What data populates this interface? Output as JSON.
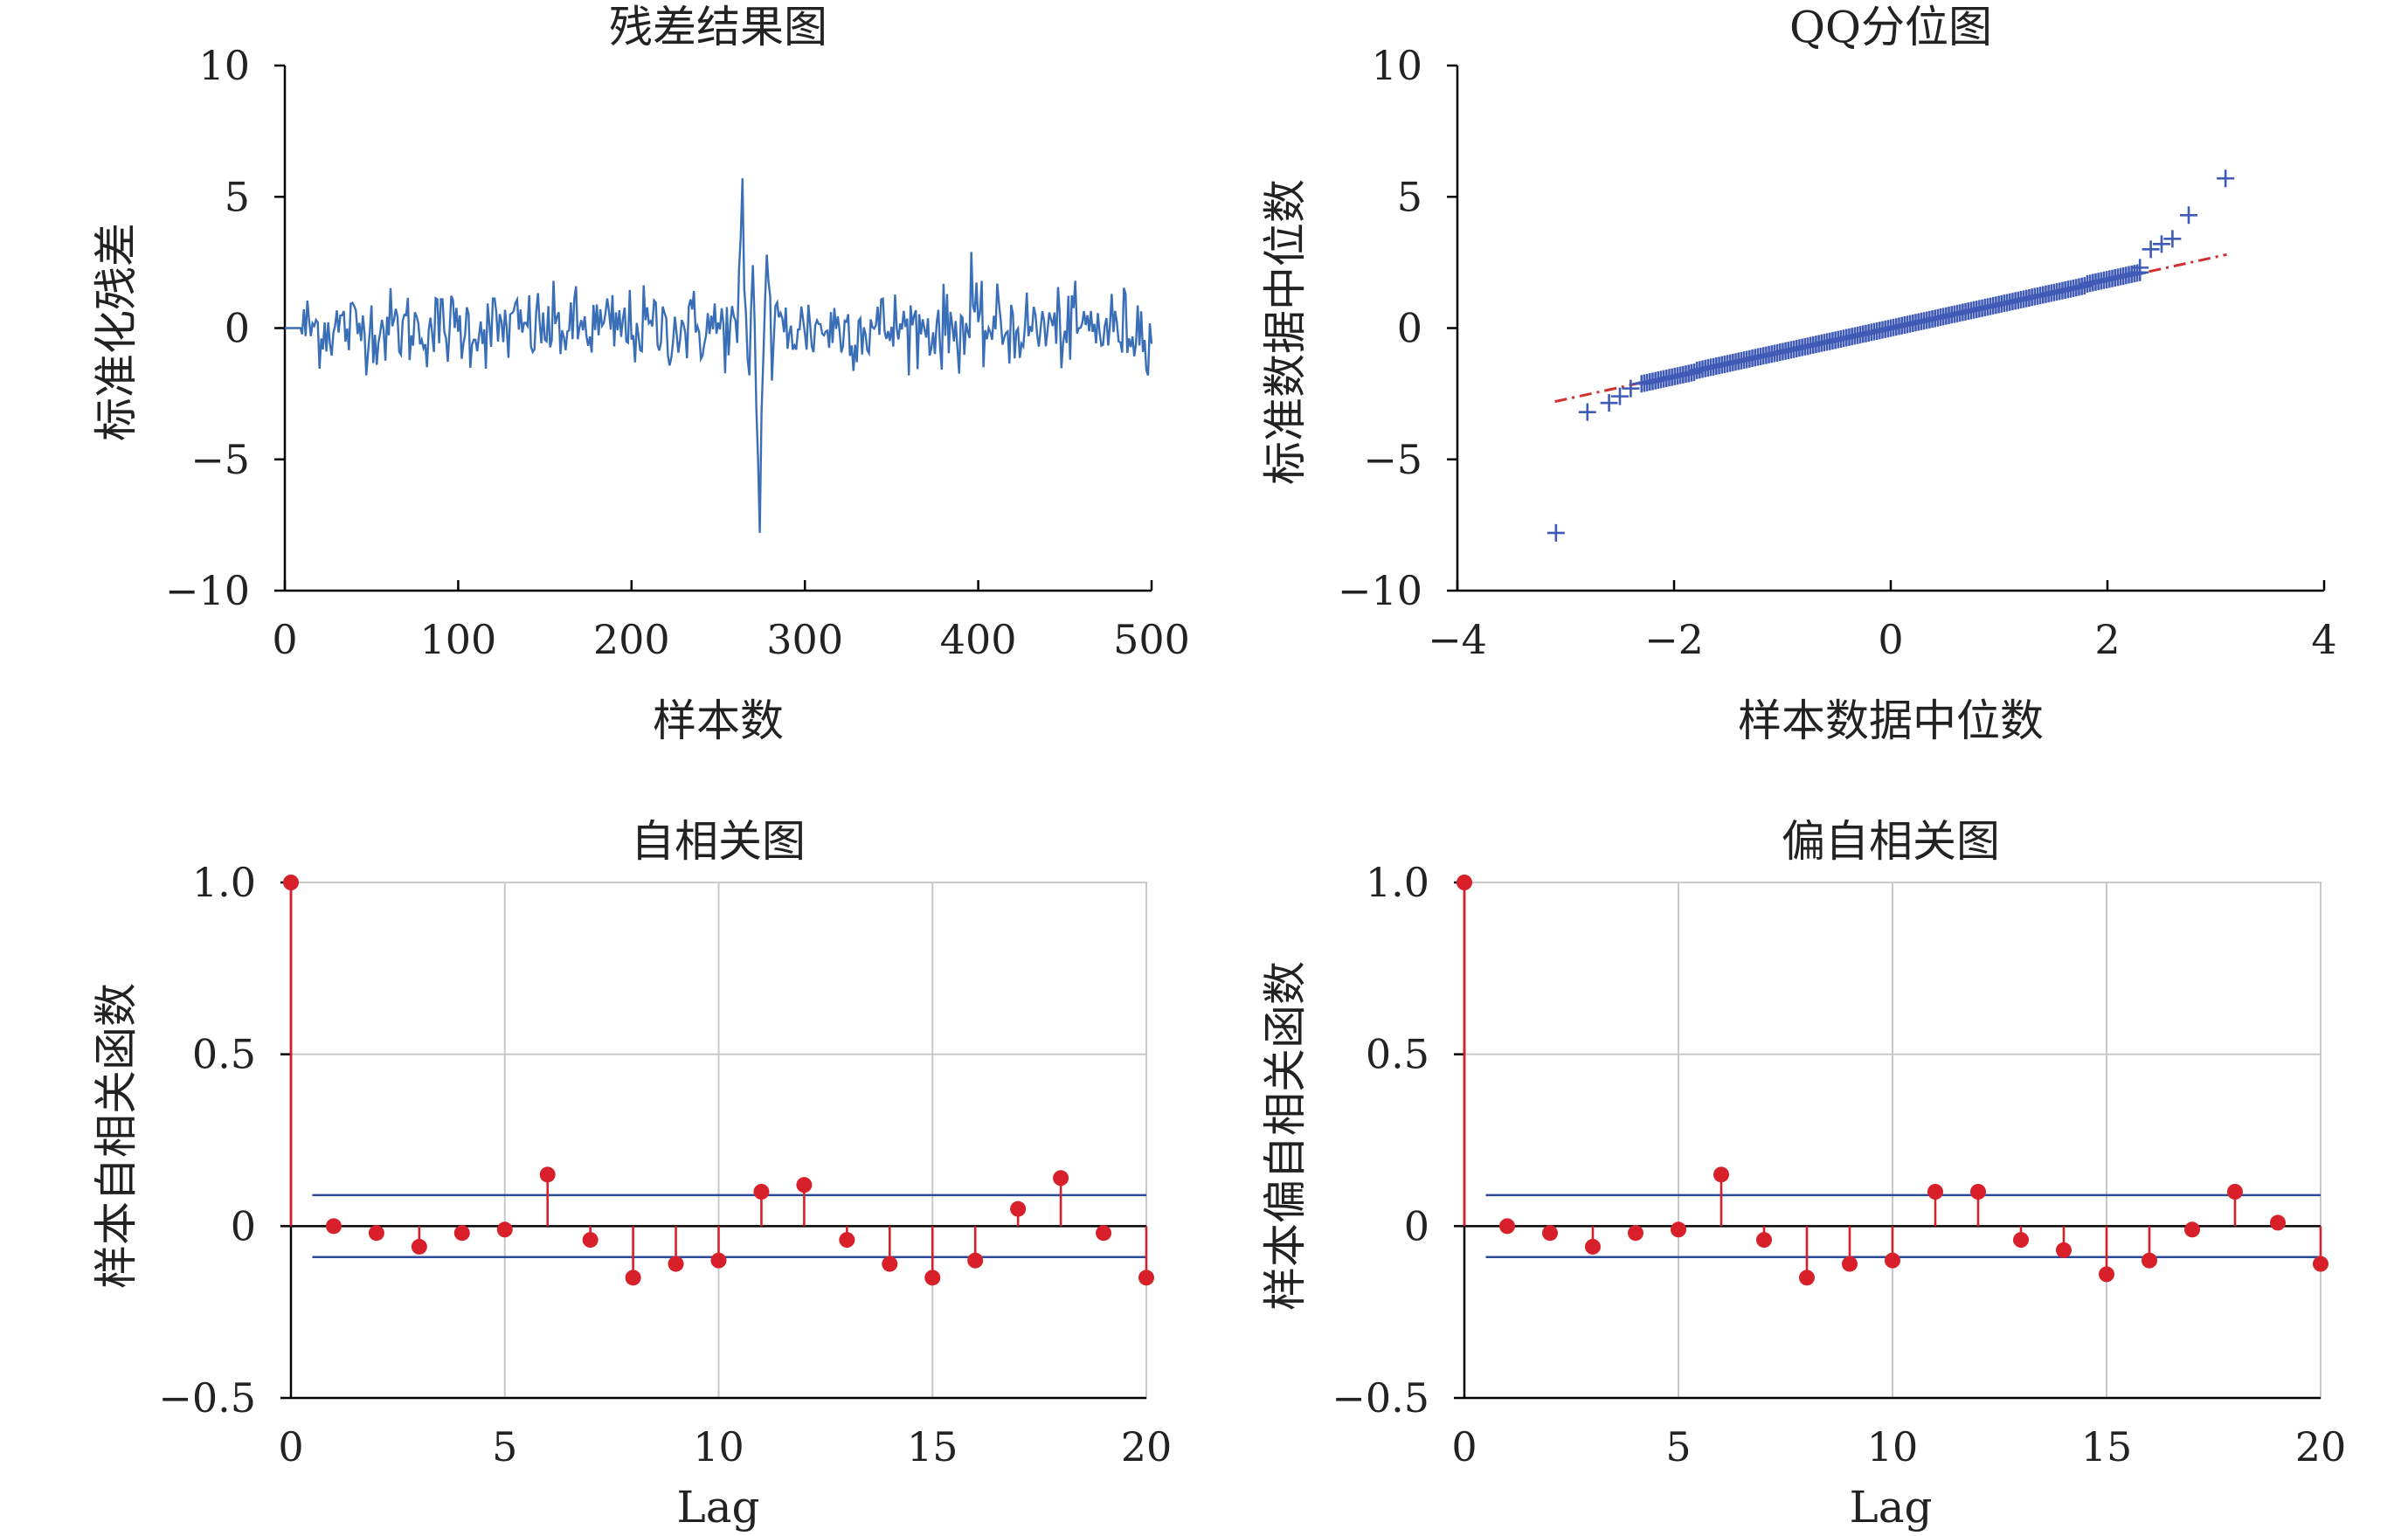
{
  "chart_data": [
    {
      "type": "line",
      "title": "残差结果图",
      "xlabel": "样本数",
      "ylabel": "标准化残差",
      "xlim": [
        0,
        500
      ],
      "ylim": [
        -10,
        10
      ],
      "xticks": [
        "0",
        "100",
        "200",
        "300",
        "400",
        "500"
      ],
      "yticks": [
        "10",
        "5",
        "0",
        "−5",
        "−10"
      ],
      "color": "#3a6fb7",
      "series": [
        {
          "description_points": [
            [
              0,
              0
            ],
            [
              260,
              0.3
            ],
            [
              262,
              2.2
            ],
            [
              264,
              5.7
            ],
            [
              266,
              0.6
            ],
            [
              268,
              -1.8
            ],
            [
              270,
              2.4
            ],
            [
              272,
              -3.0
            ],
            [
              274,
              -7.8
            ],
            [
              276,
              -1.2
            ],
            [
              278,
              2.8
            ],
            [
              280,
              1.2
            ],
            [
              282,
              -0.5
            ],
            [
              500,
              -0.6
            ]
          ],
          "range": [
            -1.7,
            1.8
          ],
          "spikes": [
            {
              "x": 265,
              "y": 5.7
            },
            {
              "x": 271,
              "y": -7.8
            },
            {
              "x": 396,
              "y": 2.9
            }
          ]
        }
      ]
    },
    {
      "type": "scatter",
      "title": "QQ分位图",
      "xlabel": "样本数据中位数",
      "ylabel": "标准数据中位数",
      "xlim": [
        -4,
        4
      ],
      "ylim": [
        -10,
        10
      ],
      "xticks": [
        "−4",
        "−2",
        "0",
        "2",
        "4"
      ],
      "yticks": [
        "10",
        "5",
        "0",
        "−5",
        "−10"
      ],
      "marker_color": "#3f5bb5",
      "ref_line_color": "#d03030",
      "reference_line": [
        [
          -3.1,
          -2.8
        ],
        [
          3.1,
          2.8
        ]
      ],
      "extreme_points": [
        [
          -3.09,
          -7.8
        ],
        [
          -2.8,
          -3.2
        ],
        [
          -2.6,
          -2.85
        ],
        [
          -2.5,
          -2.6
        ],
        [
          -2.4,
          -2.3
        ],
        [
          2.3,
          2.3
        ],
        [
          2.4,
          3.0
        ],
        [
          2.5,
          3.2
        ],
        [
          2.6,
          3.4
        ],
        [
          2.75,
          4.3
        ],
        [
          3.09,
          5.7
        ]
      ]
    },
    {
      "type": "stem",
      "title": "自相关图",
      "xlabel": "Lag",
      "ylabel": "样本自相关函数",
      "xlim": [
        0,
        20
      ],
      "ylim": [
        -0.5,
        1.0
      ],
      "xticks": [
        "0",
        "5",
        "10",
        "15",
        "20"
      ],
      "yticks": [
        "1.0",
        "0.5",
        "0",
        "−0.5"
      ],
      "lags": [
        0,
        1,
        2,
        3,
        4,
        5,
        6,
        7,
        8,
        9,
        10,
        11,
        12,
        13,
        14,
        15,
        16,
        17,
        18,
        19,
        20
      ],
      "values": [
        1.0,
        0.0,
        -0.02,
        -0.06,
        -0.02,
        -0.01,
        0.15,
        -0.04,
        -0.15,
        -0.11,
        -0.1,
        0.1,
        0.12,
        -0.04,
        -0.11,
        -0.15,
        -0.1,
        0.05,
        0.14,
        -0.02,
        -0.15
      ],
      "bounds": [
        0.09,
        -0.09
      ],
      "stem_color": "#d8202a",
      "bound_color": "#2c4a9a"
    },
    {
      "type": "stem",
      "title": "偏自相关图",
      "xlabel": "Lag",
      "ylabel": "样本偏自相关函数",
      "xlim": [
        0,
        20
      ],
      "ylim": [
        -0.5,
        1.0
      ],
      "xticks": [
        "0",
        "5",
        "10",
        "15",
        "20"
      ],
      "yticks": [
        "1.0",
        "0.5",
        "0",
        "−0.5"
      ],
      "lags": [
        0,
        1,
        2,
        3,
        4,
        5,
        6,
        7,
        8,
        9,
        10,
        11,
        12,
        13,
        14,
        15,
        16,
        17,
        18,
        19,
        20
      ],
      "values": [
        1.0,
        0.0,
        -0.02,
        -0.06,
        -0.02,
        -0.01,
        0.15,
        -0.04,
        -0.15,
        -0.11,
        -0.1,
        0.1,
        0.1,
        -0.04,
        -0.07,
        -0.14,
        -0.1,
        -0.01,
        0.1,
        0.01,
        -0.11
      ],
      "bounds": [
        0.09,
        -0.09
      ],
      "stem_color": "#d8202a",
      "bound_color": "#2c4a9a"
    }
  ]
}
